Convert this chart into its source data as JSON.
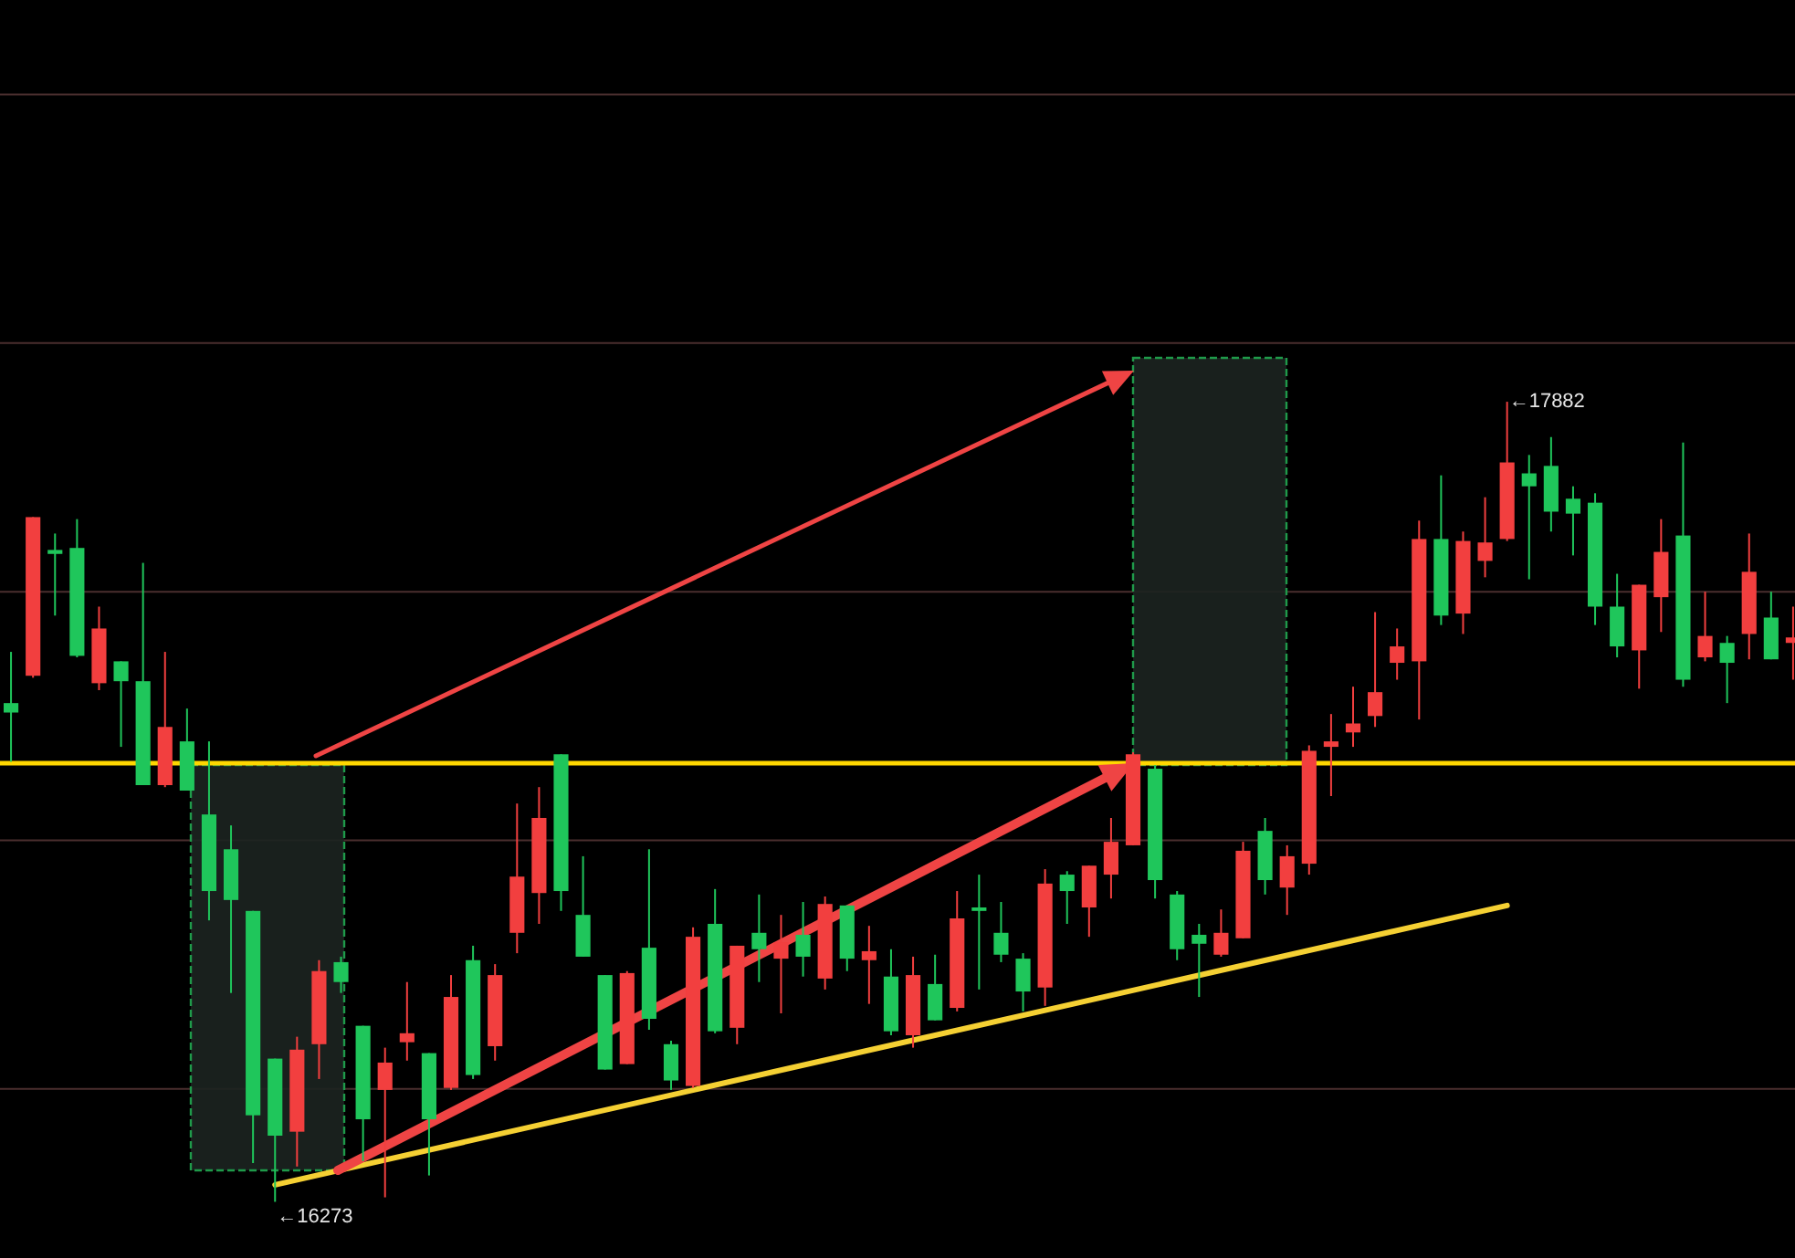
{
  "chart_data": {
    "type": "candlestick",
    "categories": [
      null,
      null,
      null,
      null,
      null,
      null,
      null,
      null,
      null,
      null,
      null,
      null,
      null,
      null,
      null,
      null,
      null,
      null,
      null,
      null,
      null,
      null,
      null,
      null,
      null,
      null,
      null,
      null,
      null,
      null,
      null,
      null,
      null,
      null,
      null,
      null,
      null,
      null,
      null,
      null,
      null,
      null,
      null,
      null,
      null,
      null,
      null,
      null,
      null,
      null,
      null,
      null,
      null,
      null,
      null,
      null,
      null,
      null,
      null,
      null,
      null,
      null,
      null,
      null,
      null,
      null,
      null,
      null,
      null,
      null,
      null,
      null,
      null,
      null,
      null,
      null,
      null,
      null,
      null,
      null,
      null,
      null
    ],
    "ohlc": [
      [
        17276,
        17379,
        17158,
        17257
      ],
      [
        17331,
        17650,
        17327,
        17650
      ],
      [
        17584,
        17617,
        17452,
        17576
      ],
      [
        17588,
        17646,
        17368,
        17371
      ],
      [
        17316,
        17470,
        17302,
        17426
      ],
      [
        17360,
        17360,
        17188,
        17320
      ],
      [
        17320,
        17558,
        17111,
        17111
      ],
      [
        17111,
        17379,
        17107,
        17228
      ],
      [
        17199,
        17265,
        17100,
        17100
      ],
      [
        17052,
        17199,
        16839,
        16898
      ],
      [
        16982,
        17030,
        16693,
        16880
      ],
      [
        16858,
        16858,
        16351,
        16447
      ],
      [
        16561,
        16561,
        16273,
        16406
      ],
      [
        16414,
        16605,
        16344,
        16579
      ],
      [
        16590,
        16759,
        16520,
        16737
      ],
      [
        16755,
        16766,
        16693,
        16715
      ],
      [
        16627,
        16627,
        16355,
        16439
      ],
      [
        16498,
        16583,
        16282,
        16553
      ],
      [
        16594,
        16715,
        16557,
        16612
      ],
      [
        16572,
        16572,
        16326,
        16439
      ],
      [
        16502,
        16729,
        16498,
        16685
      ],
      [
        16759,
        16788,
        16520,
        16528
      ],
      [
        16586,
        16751,
        16557,
        16729
      ],
      [
        16814,
        17074,
        16773,
        16927
      ],
      [
        16894,
        17107,
        16832,
        17045
      ],
      [
        17173,
        17173,
        16858,
        16898
      ],
      [
        16850,
        16968,
        16766,
        16766
      ],
      [
        16729,
        16729,
        16539,
        16539
      ],
      [
        16550,
        16737,
        16550,
        16733
      ],
      [
        16784,
        16982,
        16619,
        16641
      ],
      [
        16590,
        16597,
        16498,
        16517
      ],
      [
        16506,
        16825,
        16502,
        16806
      ],
      [
        16832,
        16902,
        16612,
        16616
      ],
      [
        16623,
        16788,
        16590,
        16788
      ],
      [
        16814,
        16891,
        16715,
        16781
      ],
      [
        16762,
        16850,
        16652,
        16795
      ],
      [
        16810,
        16876,
        16726,
        16766
      ],
      [
        16722,
        16887,
        16700,
        16872
      ],
      [
        16869,
        16869,
        16737,
        16762
      ],
      [
        16759,
        16828,
        16671,
        16777
      ],
      [
        16726,
        16781,
        16608,
        16616
      ],
      [
        16608,
        16766,
        16583,
        16729
      ],
      [
        16711,
        16770,
        16638,
        16638
      ],
      [
        16663,
        16898,
        16656,
        16843
      ],
      [
        16865,
        16931,
        16700,
        16858
      ],
      [
        16814,
        16876,
        16755,
        16770
      ],
      [
        16762,
        16773,
        16656,
        16696
      ],
      [
        16704,
        16942,
        16667,
        16913
      ],
      [
        16931,
        16938,
        16832,
        16898
      ],
      [
        16865,
        16949,
        16806,
        16949
      ],
      [
        16931,
        17045,
        16883,
        16997
      ],
      [
        16990,
        17177,
        16990,
        17173
      ],
      [
        17144,
        17151,
        16883,
        16920
      ],
      [
        16891,
        16898,
        16759,
        16781
      ],
      [
        16810,
        16832,
        16685,
        16792
      ],
      [
        16770,
        16861,
        16766,
        16814
      ],
      [
        16803,
        16997,
        16803,
        16979
      ],
      [
        17019,
        17045,
        16891,
        16920
      ],
      [
        16905,
        16990,
        16850,
        16968
      ],
      [
        16953,
        17191,
        16931,
        17180
      ],
      [
        17188,
        17254,
        17089,
        17199
      ],
      [
        17217,
        17309,
        17188,
        17235
      ],
      [
        17250,
        17459,
        17228,
        17298
      ],
      [
        17357,
        17426,
        17323,
        17390
      ],
      [
        17360,
        17643,
        17243,
        17606
      ],
      [
        17606,
        17734,
        17433,
        17452
      ],
      [
        17456,
        17621,
        17415,
        17602
      ],
      [
        17562,
        17690,
        17529,
        17599
      ],
      [
        17606,
        17882,
        17602,
        17760
      ],
      [
        17738,
        17775,
        17525,
        17712
      ],
      [
        17753,
        17811,
        17621,
        17661
      ],
      [
        17687,
        17712,
        17573,
        17657
      ],
      [
        17679,
        17698,
        17433,
        17470
      ],
      [
        17470,
        17536,
        17368,
        17390
      ],
      [
        17382,
        17514,
        17305,
        17514
      ],
      [
        17489,
        17646,
        17419,
        17580
      ],
      [
        17613,
        17800,
        17309,
        17323
      ],
      [
        17368,
        17500,
        17360,
        17411
      ],
      [
        17397,
        17411,
        17276,
        17357
      ],
      [
        17415,
        17617,
        17364,
        17540
      ],
      [
        17448,
        17500,
        17364,
        17364
      ],
      [
        17397,
        17470,
        17323,
        17408
      ]
    ],
    "series": [
      {
        "type": "line",
        "color": "#f5d033",
        "values": [
          null,
          null,
          null,
          null,
          null,
          null,
          null,
          null,
          null,
          null,
          null,
          null,
          16307,
          null,
          null,
          null,
          null,
          null,
          null,
          null,
          null,
          null,
          null,
          null,
          null,
          null,
          null,
          null,
          null,
          null,
          null,
          null,
          null,
          null,
          null,
          null,
          null,
          null,
          null,
          null,
          null,
          null,
          null,
          null,
          null,
          null,
          null,
          null,
          null,
          null,
          null,
          null,
          null,
          null,
          null,
          null,
          null,
          null,
          null,
          null,
          null,
          null,
          null,
          null,
          null,
          null,
          null,
          null,
          16869,
          null,
          null,
          null,
          null,
          null,
          null,
          null,
          null,
          null,
          null,
          null,
          null,
          null
        ]
      }
    ],
    "ylim": [
      16160,
      18690
    ],
    "yticks": [
      {
        "value": 16500,
        "label": null
      },
      {
        "value": 17000,
        "label": null
      },
      {
        "value": 17500,
        "label": null
      },
      {
        "value": 18000,
        "label": null
      },
      {
        "value": 18500,
        "label": null
      }
    ],
    "grid": "y",
    "ref_lines": [
      {
        "axis": "y",
        "value": 17155,
        "color": "#ffd700"
      }
    ],
    "annotations": [
      "←17882",
      "←16273"
    ]
  }
}
